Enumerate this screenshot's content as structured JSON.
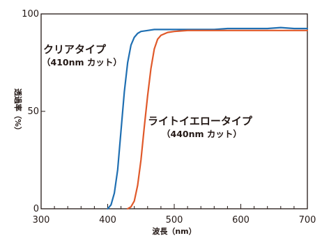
{
  "chart_data": {
    "type": "line",
    "title": "",
    "xlabel": "波長（nm）",
    "ylabel": "透過率（%）",
    "xlim": [
      300,
      700
    ],
    "ylim": [
      0,
      100
    ],
    "x_ticks": [
      300,
      400,
      500,
      600,
      700
    ],
    "y_ticks": [
      0,
      50,
      100
    ],
    "grid": false,
    "series": [
      {
        "name": "クリアタイプ",
        "subtitle": "（410nm カット）",
        "color": "#1f6fb2",
        "x": [
          400,
          405,
          410,
          415,
          420,
          425,
          430,
          435,
          440,
          445,
          450,
          460,
          470,
          480,
          500,
          520,
          540,
          560,
          580,
          600,
          620,
          640,
          660,
          680,
          700
        ],
        "y": [
          0,
          2,
          8,
          20,
          40,
          60,
          75,
          84,
          88,
          90,
          91,
          91.5,
          92,
          92,
          92,
          92,
          92,
          92,
          92.5,
          92.5,
          92.5,
          92.5,
          93,
          92.5,
          92.5
        ]
      },
      {
        "name": "ライトイエロータイプ",
        "subtitle": "（440nm カット）",
        "color": "#e0592a",
        "x": [
          430,
          435,
          440,
          445,
          450,
          455,
          460,
          465,
          470,
          475,
          480,
          490,
          500,
          520,
          540,
          560,
          580,
          600,
          620,
          640,
          660,
          680,
          700
        ],
        "y": [
          0,
          1,
          4,
          12,
          25,
          42,
          58,
          72,
          82,
          87,
          89,
          90.5,
          91,
          91.5,
          91.5,
          91.5,
          91.5,
          91.5,
          91.5,
          91.5,
          91.5,
          91.5,
          91.5
        ]
      }
    ]
  }
}
